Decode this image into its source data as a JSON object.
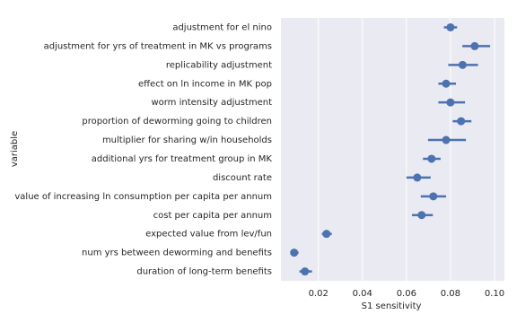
{
  "chart_data": {
    "type": "pointrange",
    "xlabel": "S1 sensitivity",
    "ylabel": "variable",
    "categories": [
      "adjustment for el nino",
      "adjustment for yrs of treatment in MK vs programs",
      "replicability adjustment",
      "effect on ln income in MK pop",
      "worm intensity adjustment",
      "proportion of deworming going to children",
      "multiplier for sharing w/in households",
      "additional yrs for treatment group in MK",
      "discount rate",
      "value of increasing ln consumption per capita per annum",
      "cost per capita per annum",
      "expected value from lev/fun",
      "num yrs between deworming and benefits",
      "duration of long-term benefits"
    ],
    "values": [
      0.08,
      0.091,
      0.0855,
      0.078,
      0.08,
      0.0848,
      0.078,
      0.0714,
      0.0649,
      0.0722,
      0.0669,
      0.0237,
      0.009,
      0.0139
    ],
    "lower": [
      0.077,
      0.0854,
      0.079,
      0.0745,
      0.0745,
      0.081,
      0.0698,
      0.0675,
      0.06,
      0.0665,
      0.0625,
      0.0216,
      0.0073,
      0.0114
    ],
    "upper": [
      0.083,
      0.098,
      0.0925,
      0.0825,
      0.0866,
      0.0895,
      0.087,
      0.0755,
      0.071,
      0.078,
      0.072,
      0.0261,
      0.011,
      0.0171
    ],
    "color": "#4c72b0",
    "xlim": [
      0.003,
      0.1045
    ],
    "xticks": [
      0.02,
      0.04,
      0.06,
      0.08,
      0.1
    ],
    "grid": true
  }
}
